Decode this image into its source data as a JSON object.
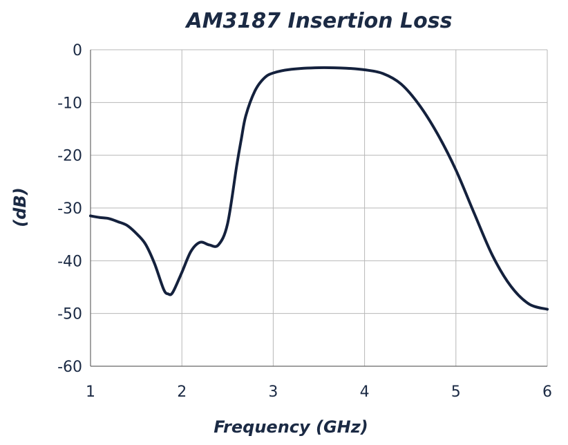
{
  "chart_data": {
    "type": "line",
    "title": "AM3187 Insertion Loss",
    "xlabel": "Frequency (GHz)",
    "ylabel": "(dB)",
    "xlim": [
      1,
      6
    ],
    "ylim": [
      -60,
      0
    ],
    "xticks": [
      1,
      2,
      3,
      4,
      5,
      6
    ],
    "yticks": [
      0,
      -10,
      -20,
      -30,
      -40,
      -50,
      -60
    ],
    "xtick_labels": [
      "1",
      "2",
      "3",
      "4",
      "5",
      "6"
    ],
    "ytick_labels": [
      "0",
      "-10",
      "-20",
      "-30",
      "-40",
      "-50",
      "-60"
    ],
    "grid": true,
    "series": [
      {
        "color": "#14213d",
        "x": [
          1.0,
          1.1,
          1.2,
          1.3,
          1.4,
          1.5,
          1.6,
          1.7,
          1.8,
          1.85,
          1.9,
          2.0,
          2.1,
          2.2,
          2.3,
          2.4,
          2.5,
          2.6,
          2.65,
          2.7,
          2.8,
          2.9,
          3.0,
          3.2,
          3.5,
          3.8,
          4.0,
          4.2,
          4.4,
          4.6,
          4.8,
          5.0,
          5.2,
          5.4,
          5.6,
          5.8,
          6.0
        ],
        "y": [
          -31.5,
          -31.8,
          -32.0,
          -32.6,
          -33.3,
          -34.8,
          -36.8,
          -40.5,
          -45.4,
          -46.3,
          -46.0,
          -42.2,
          -38.2,
          -36.5,
          -37.0,
          -37.0,
          -33.0,
          -22.0,
          -17.0,
          -12.5,
          -7.8,
          -5.4,
          -4.4,
          -3.7,
          -3.4,
          -3.5,
          -3.8,
          -4.5,
          -6.5,
          -10.5,
          -16.0,
          -22.8,
          -31.0,
          -39.0,
          -44.8,
          -48.2,
          -49.2
        ]
      }
    ]
  }
}
